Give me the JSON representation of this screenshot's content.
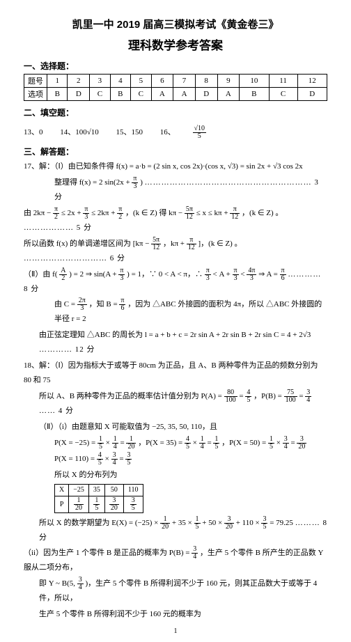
{
  "titles": {
    "line1": "凯里一中 2019 届高三模拟考试《黄金卷三》",
    "line2": "理科数学参考答案"
  },
  "section1_hdr": "一、选择题：",
  "answers_table": {
    "row_labels": [
      "题号",
      "选项"
    ],
    "nums": [
      "1",
      "2",
      "3",
      "4",
      "5",
      "6",
      "7",
      "8",
      "9",
      "10",
      "11",
      "12"
    ],
    "opts": [
      "B",
      "D",
      "C",
      "B",
      "C",
      "A",
      "A",
      "D",
      "A",
      "B",
      "C",
      "D"
    ]
  },
  "section2_hdr": "二、填空题：",
  "fill": {
    "q13": "13、0",
    "q14": "14、100√10",
    "q15": "15、150",
    "q16_label": "16、",
    "q16_num": "√10",
    "q16_den": "5"
  },
  "section3_hdr": "三、解答题：",
  "q17": {
    "open": "17、解：（Ⅰ）由已知条件得 f(x) = a·b = (2 sin x, cos 2x)·(cos x, √3) = sin 2x + √3 cos 2x",
    "line2a": "整理得 f(x) = 2 sin(2x + ",
    "line2_frac_n": "π",
    "line2_frac_d": "3",
    "line2b": ") ",
    "line2_dots": "…………………………………………………… 3 分",
    "line3a": "由 2kπ − ",
    "line3b": " ≤ 2x + ",
    "line3c": " ≤ 2kπ + ",
    "line3d": "，(k ∈ Z) 得 kπ − ",
    "line3e": " ≤ x ≤ kπ + ",
    "line3f": "，(k ∈ Z) 。",
    "line3_dots": "……………… 5 分",
    "line3_f1n": "π",
    "line3_f1d": "2",
    "line3_f2n": "π",
    "line3_f2d": "3",
    "line3_f3n": "π",
    "line3_f3d": "2",
    "line3_f4n": "5π",
    "line3_f4d": "12",
    "line3_f5n": "π",
    "line3_f5d": "12",
    "line4a": "所以函数 f(x) 的单调递增区间为 [kπ − ",
    "line4b": "，kπ + ",
    "line4c": "]，(k ∈ Z) 。",
    "line4_dots": "………………………… 6 分",
    "line4_f1n": "5π",
    "line4_f1d": "12",
    "line4_f2n": "π",
    "line4_f2d": "12",
    "line5a": "（Ⅱ）由 f(",
    "line5a_fn": "A",
    "line5a_fd": "2",
    "line5b": ") = 2 ⇒ sin(A + ",
    "line5b_fn": "π",
    "line5b_fd": "3",
    "line5c": ") = 1，∵ 0 < A < π，∴ ",
    "line5c_f1n": "π",
    "line5c_f1d": "3",
    "line5d": " < A + ",
    "line5d_fn": "π",
    "line5d_fd": "3",
    "line5e": " < ",
    "line5e_fn": "4π",
    "line5e_fd": "3",
    "line5f": " ⇒ A = ",
    "line5f_fn": "π",
    "line5f_fd": "6",
    "line5_dots": " ………… 8 分",
    "line6a": "由 C = ",
    "line6a_fn": "2π",
    "line6a_fd": "3",
    "line6b": "，知 B = ",
    "line6b_fn": "π",
    "line6b_fd": "6",
    "line6c": "，因为 △ABC 外接圆的面积为 4π，所以 △ABC 外接圆的半径 r = 2",
    "line7": "由正弦定理知 △ABC 的周长为 l = a + b + c = 2r sin A + 2r sin B + 2r sin C = 4 + 2√3",
    "line7_dots": " ………… 12 分"
  },
  "q18": {
    "open": "18、解：（Ⅰ）因为指标大于或等于 80cm 为正品，且 A、B 两种零件为正品的频数分别为 80 和 75",
    "line2a": "所以 A、B 两种零件为正品的概率估计值分别为 P(A) = ",
    "line2_f1n": "80",
    "line2_f1d": "100",
    "line2b": " = ",
    "line2_f2n": "4",
    "line2_f2d": "5",
    "line2c": "，P(B) = ",
    "line2_f3n": "75",
    "line2_f3d": "100",
    "line2d": " = ",
    "line2_f4n": "3",
    "line2_f4d": "4",
    "line2_dots": " …… 4 分",
    "line3": "（Ⅱ）（i）由题意知 X 可能取值为 −25, 35, 50, 110，且",
    "line4a": "P(X = −25) = ",
    "l4_f1n": "1",
    "l4_f1d": "5",
    "l4_mul1": " × ",
    "l4_f2n": "1",
    "l4_f2d": "4",
    "l4_eq1": " = ",
    "l4_f3n": "1",
    "l4_f3d": "20",
    "line4b": "，P(X = 35) = ",
    "l4_f4n": "4",
    "l4_f4d": "5",
    "l4_f5n": "1",
    "l4_f5d": "4",
    "l4_f6n": "1",
    "l4_f6d": "5",
    "line4c": "，P(X = 50) = ",
    "l4_f7n": "1",
    "l4_f7d": "5",
    "l4_f8n": "3",
    "l4_f8d": "4",
    "l4_f9n": "3",
    "l4_f9d": "20",
    "line5a": "P(X = 110) = ",
    "l5_f1n": "4",
    "l5_f1d": "5",
    "l5_f2n": "3",
    "l5_f2d": "4",
    "l5_f3n": "3",
    "l5_f3d": "5",
    "line6": "所以 X 的分布列为",
    "dist": {
      "headers": [
        "X",
        "−25",
        "35",
        "50",
        "110"
      ],
      "probs_n": [
        "",
        "1",
        "1",
        "3",
        "3"
      ],
      "probs_d": [
        "P",
        "20",
        "5",
        "20",
        "5"
      ]
    },
    "line7a": "所以 X 的数学期望为 E(X) = (−25) × ",
    "l7_f1n": "1",
    "l7_f1d": "20",
    "line7b": " + 35 × ",
    "l7_f2n": "1",
    "l7_f2d": "5",
    "line7c": " + 50 × ",
    "l7_f3n": "3",
    "l7_f3d": "20",
    "line7d": " + 110 × ",
    "l7_f4n": "3",
    "l7_f4d": "5",
    "line7e": " = 79.25",
    "line7_dots": " ……… 8 分",
    "line8a": "（ii）因为生产 1 个零件 B 是正品的概率为 P(B) = ",
    "l8_fn": "3",
    "l8_fd": "4",
    "line8b": "，生产 5 个零件 B 所产生的正品数 Y 服从二项分布，",
    "line9a": "即 Y ~ B(5, ",
    "l9_fn": "3",
    "l9_fd": "4",
    "line9b": ")，生产 5 个零件 B 所得利润不少于 160 元，则其正品数大于或等于 4 件，所以，",
    "line10": "生产 5 个零件 B 所得利润不少于 160 元的概率为"
  },
  "pagenum": "1",
  "colors": {
    "text": "#000000",
    "bg": "#ffffff",
    "border": "#000000"
  }
}
